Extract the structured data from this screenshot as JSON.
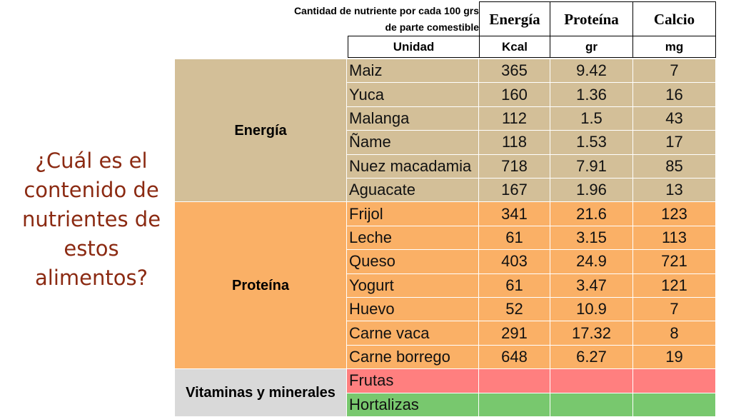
{
  "question": "¿Cuál es el contenido de nutrientes de estos alimentos?",
  "header": {
    "caption_line1": "Cantidad de nutriente por cada 100 grs",
    "caption_line2": "de parte comestible",
    "unit_label": "Unidad",
    "columns": [
      "Energía",
      "Proteína",
      "Calcio"
    ],
    "units": [
      "Kcal",
      "gr",
      "mg"
    ]
  },
  "groups": [
    {
      "label": "Energía",
      "color": "#D3BF98",
      "rows": [
        {
          "food": "Maiz",
          "values": [
            "365",
            "9.42",
            "7"
          ]
        },
        {
          "food": "Yuca",
          "values": [
            "160",
            "1.36",
            "16"
          ]
        },
        {
          "food": "Malanga",
          "values": [
            "112",
            "1.5",
            "43"
          ]
        },
        {
          "food": "Ñame",
          "values": [
            "118",
            "1.53",
            "17"
          ]
        },
        {
          "food": "Nuez macadamia",
          "values": [
            "718",
            "7.91",
            "85"
          ]
        },
        {
          "food": "Aguacate",
          "values": [
            "167",
            "1.96",
            "13"
          ]
        }
      ]
    },
    {
      "label": "Proteína",
      "color": "#FAB066",
      "rows": [
        {
          "food": "Frijol",
          "values": [
            "341",
            "21.6",
            "123"
          ]
        },
        {
          "food": "Leche",
          "values": [
            "61",
            "3.15",
            "113"
          ]
        },
        {
          "food": "Queso",
          "values": [
            "403",
            "24.9",
            "721"
          ]
        },
        {
          "food": "Yogurt",
          "values": [
            "61",
            "3.47",
            "121"
          ]
        },
        {
          "food": "Huevo",
          "values": [
            "52",
            "10.9",
            "7"
          ]
        },
        {
          "food": "Carne vaca",
          "values": [
            "291",
            "17.32",
            "8"
          ]
        },
        {
          "food": "Carne borrego",
          "values": [
            "648",
            "6.27",
            "19"
          ]
        }
      ]
    },
    {
      "label": "Vitaminas y minerales",
      "color": "#D9D9D9",
      "rows": [
        {
          "food": "Frutas",
          "values": [
            "",
            "",
            ""
          ],
          "color": "#FF7F7F"
        },
        {
          "food": "Hortalizas",
          "values": [
            "",
            "",
            ""
          ],
          "color": "#78C86E"
        }
      ]
    }
  ]
}
